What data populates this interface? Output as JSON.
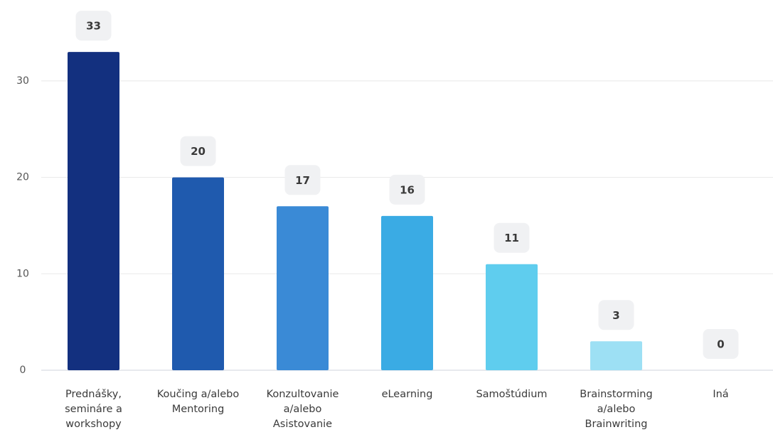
{
  "chart_data": {
    "type": "bar",
    "categories": [
      "Prednášky, semináre a workshopy",
      "Koučing a/alebo Mentoring",
      "Konzultovanie a/alebo Asistovanie",
      "eLearning",
      "Samoštúdium",
      "Brainstorming a/alebo Brainwriting",
      "Iná"
    ],
    "values": [
      33,
      20,
      17,
      16,
      11,
      3,
      0
    ],
    "colors": [
      "#13307f",
      "#1f5aae",
      "#3a8ad6",
      "#3aabe4",
      "#5fcdee",
      "#9de0f4",
      "#c8eefa"
    ],
    "ylim": [
      0,
      35
    ],
    "yticks": [
      0,
      10,
      20,
      30
    ],
    "grid": true
  }
}
